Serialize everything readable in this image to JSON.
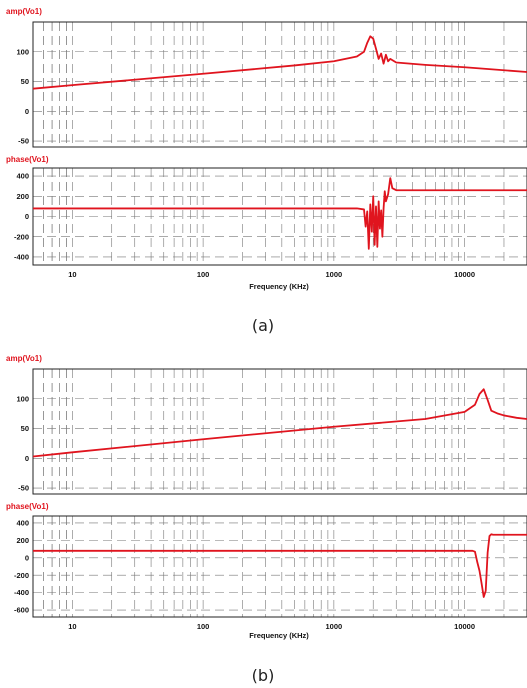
{
  "colors": {
    "trace": "#e0141e",
    "title": "#e0141e",
    "grid": "#777777",
    "frame": "#222222"
  },
  "chart_data": [
    {
      "type": "line",
      "panel": "a-amp",
      "title": "amp(Vo1)",
      "xlabel": "",
      "ylabel": "",
      "xscale": "log",
      "xlim": [
        5,
        30000
      ],
      "ylim": [
        -60,
        150
      ],
      "yticks": [
        -50,
        0,
        50,
        100
      ],
      "grid": true,
      "series": [
        {
          "x": [
            5,
            10,
            100,
            500,
            1000,
            1500,
            1700,
            1800,
            1900,
            2000,
            2100,
            2200,
            2300,
            2400,
            2500,
            2600,
            2700,
            3000,
            5000,
            10000,
            30000
          ],
          "y": [
            38,
            44,
            63,
            77,
            84,
            92,
            100,
            115,
            126,
            122,
            105,
            88,
            97,
            80,
            95,
            84,
            88,
            82,
            78,
            74,
            66
          ]
        }
      ]
    },
    {
      "type": "line",
      "panel": "a-phase",
      "title": "phase(Vo1)",
      "xlabel": "Frequency (KHz)",
      "ylabel": "",
      "xscale": "log",
      "xlim": [
        5,
        30000
      ],
      "ylim": [
        -480,
        480
      ],
      "yticks": [
        -400,
        -200,
        0,
        200,
        400
      ],
      "xticks": [
        10,
        100,
        1000,
        10000
      ],
      "grid": true,
      "series": [
        {
          "x": [
            5,
            1000,
            1500,
            1700,
            1750,
            1800,
            1850,
            1900,
            1950,
            2000,
            2050,
            2100,
            2150,
            2200,
            2250,
            2300,
            2350,
            2400,
            2450,
            2500,
            2600,
            2700,
            2800,
            3000,
            4000,
            30000
          ],
          "y": [
            80,
            80,
            80,
            70,
            -100,
            50,
            -320,
            120,
            -150,
            200,
            -280,
            100,
            -300,
            150,
            -120,
            60,
            -200,
            80,
            250,
            150,
            220,
            380,
            280,
            260,
            260,
            260
          ]
        }
      ]
    },
    {
      "type": "line",
      "panel": "b-amp",
      "title": "amp(Vo1)",
      "xlabel": "",
      "ylabel": "",
      "xscale": "log",
      "xlim": [
        5,
        30000
      ],
      "ylim": [
        -60,
        150
      ],
      "yticks": [
        -50,
        0,
        50,
        100
      ],
      "grid": true,
      "series": [
        {
          "x": [
            5,
            10,
            100,
            1000,
            5000,
            10000,
            12000,
            13000,
            14000,
            15000,
            16000,
            18000,
            20000,
            25000,
            30000
          ],
          "y": [
            3,
            10,
            32,
            53,
            66,
            78,
            90,
            108,
            116,
            98,
            80,
            75,
            72,
            68,
            66
          ]
        }
      ]
    },
    {
      "type": "line",
      "panel": "b-phase",
      "title": "phase(Vo1)",
      "xlabel": "Frequency (KHz)",
      "ylabel": "",
      "xscale": "log",
      "xlim": [
        5,
        30000
      ],
      "ylim": [
        -680,
        480
      ],
      "yticks": [
        -600,
        -400,
        -200,
        0,
        200,
        400
      ],
      "xticks": [
        10,
        100,
        1000,
        10000
      ],
      "grid": true,
      "series": [
        {
          "x": [
            5,
            10000,
            11500,
            12000,
            12500,
            13000,
            13500,
            14000,
            14500,
            15000,
            15500,
            16000,
            16500,
            17000,
            20000,
            30000
          ],
          "y": [
            80,
            80,
            80,
            70,
            -50,
            -150,
            -300,
            -450,
            -380,
            60,
            250,
            270,
            265,
            265,
            265,
            265
          ]
        }
      ]
    }
  ],
  "captions": {
    "a": "(a)",
    "b": "(b)"
  }
}
